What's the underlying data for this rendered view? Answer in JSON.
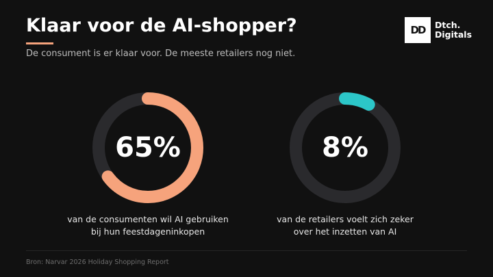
{
  "header": {
    "title": "Klaar voor de AI-shopper?",
    "subtitle": "De consument is er klaar voor. De meeste retailers nog niet."
  },
  "logo": {
    "mark": "DD",
    "line1": "Dtch.",
    "line2": "Digitals"
  },
  "chart_data": [
    {
      "type": "pie",
      "value_label": "65%",
      "value": 65,
      "max": 100,
      "caption": [
        "van de consumenten wil AI gebruiken",
        "bij hun feestdageninkopen"
      ],
      "color": "#F6A37C",
      "track_color": "#2A2A2D"
    },
    {
      "type": "pie",
      "value_label": "8%",
      "value": 8,
      "max": 100,
      "caption": [
        "van de retailers voelt zich zeker",
        "over het inzetten van AI"
      ],
      "color": "#2CC6C8",
      "track_color": "#2A2A2D"
    }
  ],
  "footer": {
    "source": "Bron: Narvar 2026 Holiday Shopping Report"
  },
  "colors": {
    "background": "#111111",
    "accent": "#F6A37C"
  }
}
